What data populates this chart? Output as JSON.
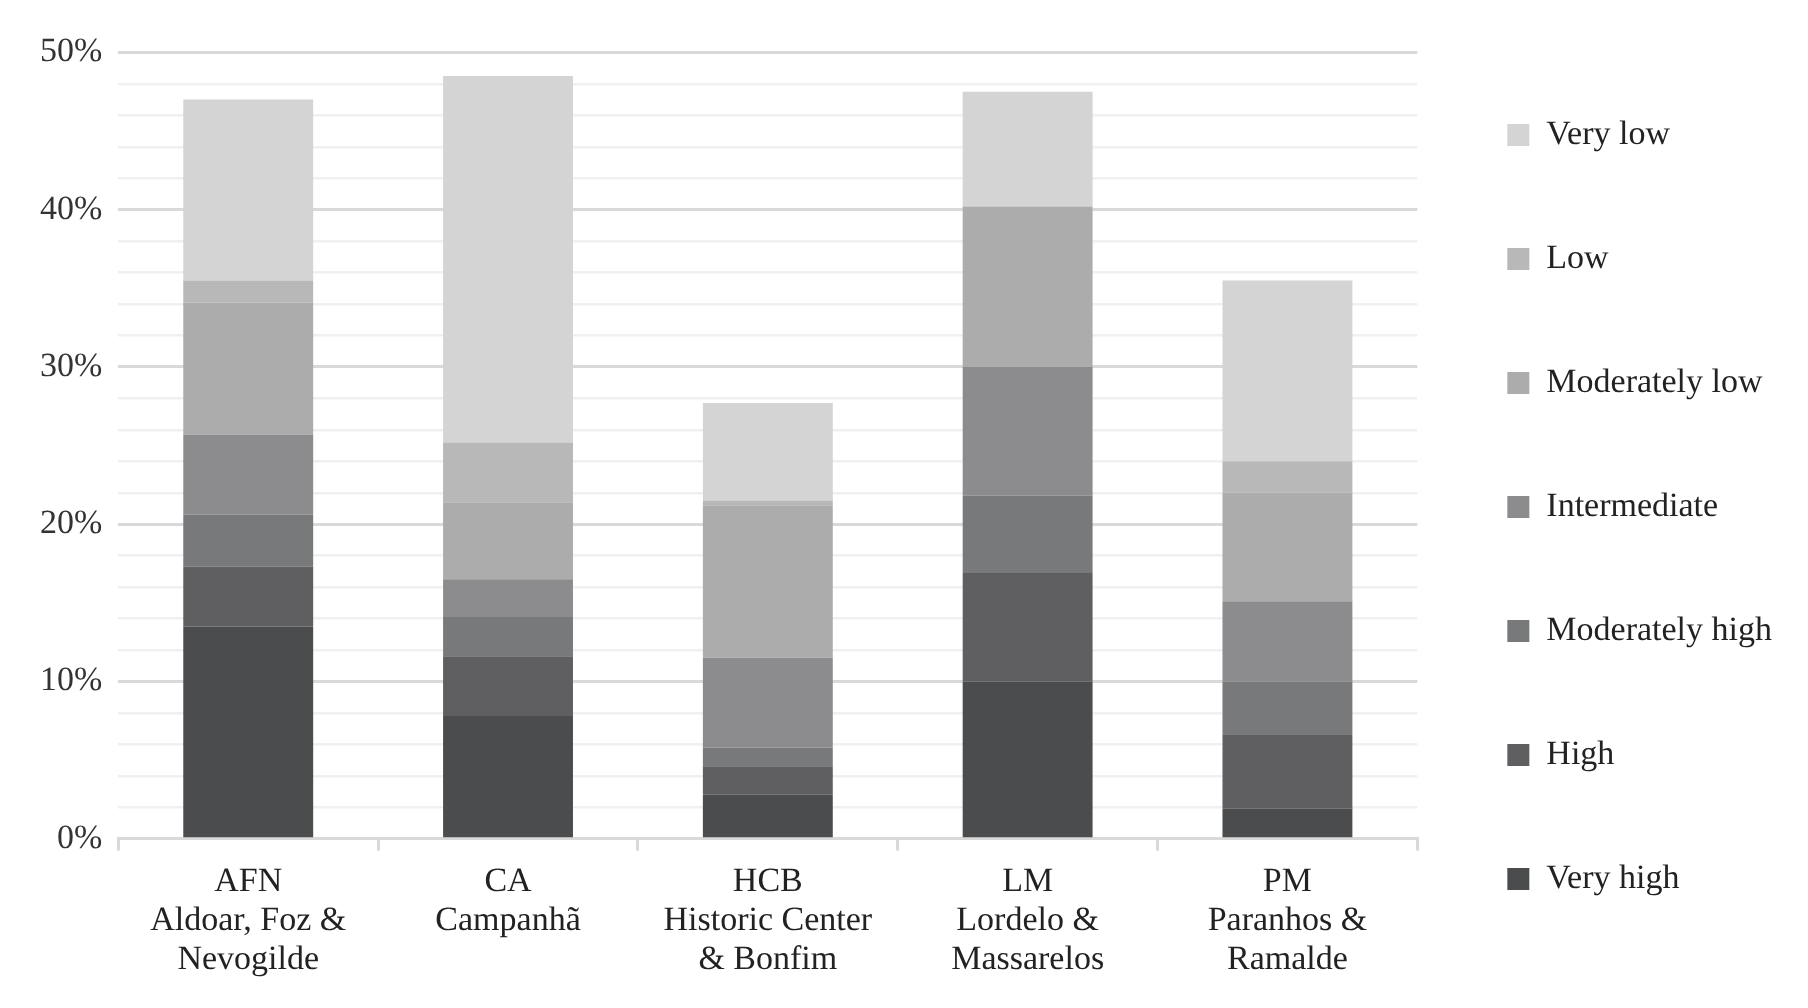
{
  "chart_data": {
    "type": "bar",
    "stacked": true,
    "categories": [
      "AFN\nAldoar, Foz &\nNevogilde",
      "CA\nCampanhã",
      "HCB\nHistoric Center\n& Bonfim",
      "LM\nLordelo &\nMassarelos",
      "PM\nParanhos &\nRamalde"
    ],
    "series": [
      {
        "name": "Very high",
        "color": "#4b4c4e",
        "values": [
          13.5,
          7.8,
          2.8,
          10.0,
          1.9
        ]
      },
      {
        "name": "High",
        "color": "#5f5f61",
        "values": [
          3.8,
          3.8,
          1.8,
          6.9,
          4.7
        ]
      },
      {
        "name": "Moderately high",
        "color": "#78797b",
        "values": [
          3.3,
          2.5,
          1.2,
          4.9,
          3.4
        ]
      },
      {
        "name": "Intermediate",
        "color": "#8c8c8e",
        "values": [
          5.1,
          2.4,
          5.7,
          8.2,
          5.1
        ]
      },
      {
        "name": "Moderately low",
        "color": "#acacad",
        "values": [
          8.4,
          4.9,
          9.7,
          10.2,
          6.9
        ]
      },
      {
        "name": "Low",
        "color": "#b8b8b9",
        "values": [
          1.4,
          3.8,
          0.3,
          0,
          2.0
        ]
      },
      {
        "name": "Very low",
        "color": "#d4d4d4",
        "values": [
          11.5,
          23.3,
          6.2,
          7.3,
          11.5
        ]
      }
    ],
    "ylim": [
      0,
      50
    ],
    "yticks": [
      {
        "value": 0,
        "label": "0%"
      },
      {
        "value": 2,
        "label": null
      },
      {
        "value": 4,
        "label": null
      },
      {
        "value": 6,
        "label": null
      },
      {
        "value": 8,
        "label": null
      },
      {
        "value": 10,
        "label": "10%"
      },
      {
        "value": 12,
        "label": null
      },
      {
        "value": 14,
        "label": null
      },
      {
        "value": 16,
        "label": null
      },
      {
        "value": 18,
        "label": null
      },
      {
        "value": 20,
        "label": "20%"
      },
      {
        "value": 22,
        "label": null
      },
      {
        "value": 24,
        "label": null
      },
      {
        "value": 26,
        "label": null
      },
      {
        "value": 28,
        "label": null
      },
      {
        "value": 30,
        "label": "30%"
      },
      {
        "value": 32,
        "label": null
      },
      {
        "value": 34,
        "label": null
      },
      {
        "value": 36,
        "label": null
      },
      {
        "value": 38,
        "label": null
      },
      {
        "value": 40,
        "label": "40%"
      },
      {
        "value": 42,
        "label": null
      },
      {
        "value": 44,
        "label": null
      },
      {
        "value": 46,
        "label": null
      },
      {
        "value": 48,
        "label": null
      },
      {
        "value": 50,
        "label": "50%"
      }
    ],
    "grid": "y",
    "legend": "right"
  }
}
